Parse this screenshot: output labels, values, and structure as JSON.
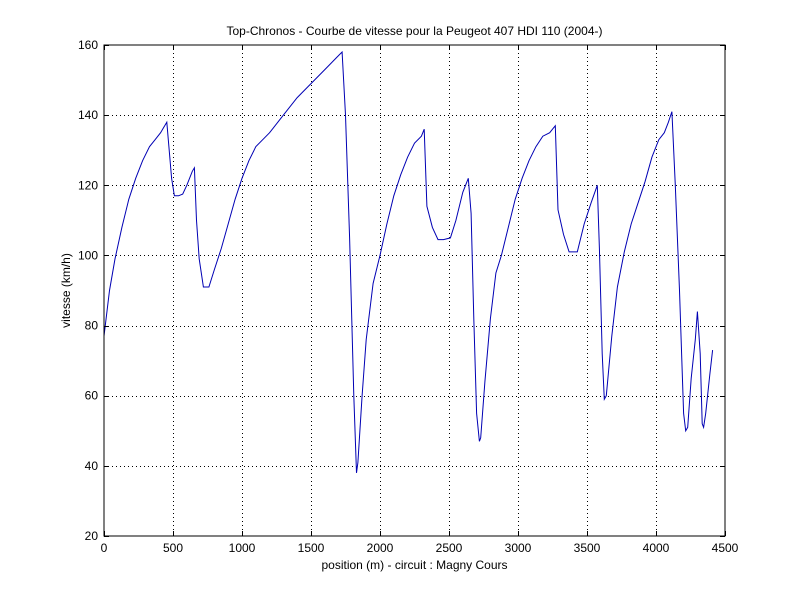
{
  "chart_data": {
    "type": "line",
    "title": "Top-Chronos - Courbe de vitesse pour la Peugeot 407 HDI 110 (2004-)",
    "xlabel": "position (m) - circuit : Magny Cours",
    "ylabel": "vitesse (km/h)",
    "xlim": [
      0,
      4500
    ],
    "ylim": [
      20,
      160
    ],
    "xticks": [
      0,
      500,
      1000,
      1500,
      2000,
      2500,
      3000,
      3500,
      4000,
      4500
    ],
    "yticks": [
      20,
      40,
      60,
      80,
      100,
      120,
      140,
      160
    ],
    "xtick_labels": [
      "0",
      "500",
      "1000",
      "1500",
      "2000",
      "2500",
      "3000",
      "3500",
      "4000",
      "4500"
    ],
    "ytick_labels": [
      "20",
      "40",
      "60",
      "80",
      "100",
      "120",
      "140",
      "160"
    ],
    "grid": true,
    "line_color": "#0000b4",
    "series": [
      {
        "points": [
          [
            0,
            77
          ],
          [
            40,
            90
          ],
          [
            80,
            99
          ],
          [
            130,
            108
          ],
          [
            180,
            116
          ],
          [
            230,
            122
          ],
          [
            280,
            127
          ],
          [
            330,
            131
          ],
          [
            370,
            133
          ],
          [
            410,
            135
          ],
          [
            440,
            137
          ],
          [
            455,
            138
          ],
          [
            470,
            131
          ],
          [
            490,
            122
          ],
          [
            510,
            117
          ],
          [
            540,
            117
          ],
          [
            570,
            117.5
          ],
          [
            600,
            120
          ],
          [
            640,
            124
          ],
          [
            655,
            125
          ],
          [
            670,
            110
          ],
          [
            690,
            99
          ],
          [
            720,
            91
          ],
          [
            760,
            91
          ],
          [
            800,
            96
          ],
          [
            850,
            102
          ],
          [
            900,
            109
          ],
          [
            950,
            116
          ],
          [
            1000,
            122
          ],
          [
            1050,
            127
          ],
          [
            1100,
            131
          ],
          [
            1150,
            133
          ],
          [
            1200,
            135
          ],
          [
            1300,
            140
          ],
          [
            1400,
            145
          ],
          [
            1500,
            149
          ],
          [
            1600,
            153
          ],
          [
            1700,
            157
          ],
          [
            1725,
            158
          ],
          [
            1750,
            140
          ],
          [
            1780,
            105
          ],
          [
            1810,
            60
          ],
          [
            1830,
            38
          ],
          [
            1840,
            41
          ],
          [
            1870,
            60
          ],
          [
            1900,
            76
          ],
          [
            1950,
            92
          ],
          [
            2000,
            100
          ],
          [
            2050,
            109
          ],
          [
            2100,
            117
          ],
          [
            2150,
            123
          ],
          [
            2200,
            128
          ],
          [
            2250,
            132
          ],
          [
            2300,
            134
          ],
          [
            2320,
            136
          ],
          [
            2340,
            114
          ],
          [
            2380,
            108
          ],
          [
            2420,
            104.5
          ],
          [
            2460,
            104.5
          ],
          [
            2510,
            105
          ],
          [
            2550,
            110
          ],
          [
            2600,
            118
          ],
          [
            2640,
            122
          ],
          [
            2660,
            112
          ],
          [
            2680,
            82
          ],
          [
            2700,
            55
          ],
          [
            2720,
            47
          ],
          [
            2730,
            48
          ],
          [
            2760,
            64
          ],
          [
            2800,
            82
          ],
          [
            2840,
            95
          ],
          [
            2880,
            100
          ],
          [
            2930,
            108
          ],
          [
            2980,
            116
          ],
          [
            3030,
            122
          ],
          [
            3080,
            127
          ],
          [
            3130,
            131
          ],
          [
            3180,
            134
          ],
          [
            3230,
            135
          ],
          [
            3270,
            137
          ],
          [
            3290,
            113
          ],
          [
            3330,
            106
          ],
          [
            3370,
            101
          ],
          [
            3430,
            101
          ],
          [
            3480,
            109
          ],
          [
            3530,
            115
          ],
          [
            3575,
            120
          ],
          [
            3590,
            102
          ],
          [
            3610,
            72
          ],
          [
            3625,
            59
          ],
          [
            3640,
            60
          ],
          [
            3680,
            77
          ],
          [
            3720,
            91
          ],
          [
            3770,
            101
          ],
          [
            3820,
            109
          ],
          [
            3870,
            115
          ],
          [
            3920,
            121
          ],
          [
            3970,
            128
          ],
          [
            4020,
            133
          ],
          [
            4060,
            135
          ],
          [
            4090,
            138
          ],
          [
            4115,
            141
          ],
          [
            4140,
            120
          ],
          [
            4170,
            90
          ],
          [
            4200,
            55
          ],
          [
            4215,
            50
          ],
          [
            4230,
            51
          ],
          [
            4255,
            65
          ],
          [
            4285,
            76
          ],
          [
            4300,
            84
          ],
          [
            4320,
            72
          ],
          [
            4335,
            52
          ],
          [
            4345,
            51
          ],
          [
            4360,
            55
          ],
          [
            4390,
            66
          ],
          [
            4410,
            73
          ]
        ]
      }
    ]
  }
}
